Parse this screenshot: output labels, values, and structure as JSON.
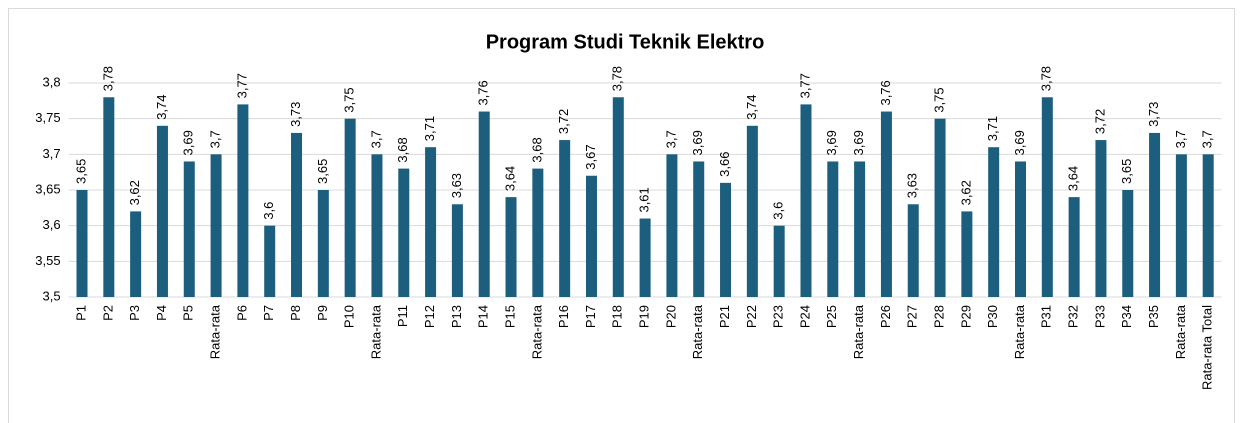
{
  "chart_data": {
    "type": "bar",
    "title": "Program Studi Teknik Elektro",
    "categories": [
      "P1",
      "P2",
      "P3",
      "P4",
      "P5",
      "Rata-rata",
      "P6",
      "P7",
      "P8",
      "P9",
      "P10",
      "Rata-rata",
      "P11",
      "P12",
      "P13",
      "P14",
      "P15",
      "Rata-rata",
      "P16",
      "P17",
      "P18",
      "P19",
      "P20",
      "Rata-rata",
      "P21",
      "P22",
      "P23",
      "P24",
      "P25",
      "Rata-rata",
      "P26",
      "P27",
      "P28",
      "P29",
      "P30",
      "Rata-rata",
      "P31",
      "P32",
      "P33",
      "P34",
      "P35",
      "Rata-rata",
      "Rata-rata Total"
    ],
    "values": [
      3.65,
      3.78,
      3.62,
      3.74,
      3.69,
      3.7,
      3.77,
      3.6,
      3.73,
      3.65,
      3.75,
      3.7,
      3.68,
      3.71,
      3.63,
      3.76,
      3.64,
      3.68,
      3.72,
      3.67,
      3.78,
      3.61,
      3.7,
      3.69,
      3.66,
      3.74,
      3.6,
      3.77,
      3.69,
      3.69,
      3.76,
      3.63,
      3.75,
      3.62,
      3.71,
      3.69,
      3.78,
      3.64,
      3.72,
      3.65,
      3.73,
      3.7,
      3.7
    ],
    "value_labels": [
      "3,65",
      "3,78",
      "3,62",
      "3,74",
      "3,69",
      "3,7",
      "3,77",
      "3,6",
      "3,73",
      "3,65",
      "3,75",
      "3,7",
      "3,68",
      "3,71",
      "3,63",
      "3,76",
      "3,64",
      "3,68",
      "3,72",
      "3,67",
      "3,78",
      "3,61",
      "3,7",
      "3,69",
      "3,66",
      "3,74",
      "3,6",
      "3,77",
      "3,69",
      "3,69",
      "3,76",
      "3,63",
      "3,75",
      "3,62",
      "3,71",
      "3,69",
      "3,78",
      "3,64",
      "3,72",
      "3,65",
      "3,73",
      "3,7",
      "3,7"
    ],
    "color": "#1b5e7e",
    "ylim": [
      3.5,
      3.8
    ],
    "yticks": [
      {
        "value": 3.5,
        "label": "3,5"
      },
      {
        "value": 3.55,
        "label": "3,55"
      },
      {
        "value": 3.6,
        "label": "3,6"
      },
      {
        "value": 3.65,
        "label": "3,65"
      },
      {
        "value": 3.7,
        "label": "3,7"
      },
      {
        "value": 3.75,
        "label": "3,75"
      },
      {
        "value": 3.8,
        "label": "3,8"
      }
    ],
    "grid": true
  }
}
